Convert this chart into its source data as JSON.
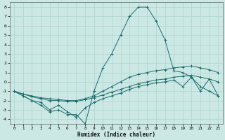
{
  "xlabel": "Humidex (Indice chaleur)",
  "xlim": [
    -0.5,
    23.5
  ],
  "ylim": [
    -4.5,
    8.5
  ],
  "yticks": [
    -4,
    -3,
    -2,
    -1,
    0,
    1,
    2,
    3,
    4,
    5,
    6,
    7,
    8
  ],
  "xticks": [
    0,
    1,
    2,
    3,
    4,
    5,
    6,
    7,
    8,
    9,
    10,
    11,
    12,
    13,
    14,
    15,
    16,
    17,
    18,
    19,
    20,
    21,
    22,
    23
  ],
  "bg_color": "#cce8e4",
  "grid_color": "#b0d8d4",
  "line_color": "#1a6b6b",
  "series": [
    {
      "x": [
        0,
        1,
        2,
        3,
        4,
        5,
        6,
        7,
        8,
        9,
        10,
        11,
        12,
        13,
        14,
        15,
        16,
        17,
        18,
        19,
        20,
        21,
        22,
        23
      ],
      "y": [
        -1.0,
        -1.5,
        -2.0,
        -2.5,
        -3.2,
        -3.0,
        -3.5,
        -3.5,
        -4.5,
        -1.0,
        1.5,
        3.0,
        5.0,
        7.0,
        8.0,
        8.0,
        6.5,
        4.5,
        1.2,
        1.0,
        0.5,
        -0.5,
        -1.0,
        -1.5
      ]
    },
    {
      "x": [
        0,
        1,
        2,
        3,
        4,
        5,
        6,
        7,
        8,
        9,
        10,
        11,
        12,
        13,
        14,
        15,
        16,
        17,
        18,
        19,
        20,
        21,
        22,
        23
      ],
      "y": [
        -1.0,
        -1.3,
        -1.5,
        -1.7,
        -1.8,
        -1.9,
        -2.0,
        -2.0,
        -1.8,
        -1.5,
        -1.0,
        -0.5,
        0.0,
        0.5,
        0.8,
        1.0,
        1.2,
        1.3,
        1.5,
        1.6,
        1.7,
        1.5,
        1.3,
        1.0
      ]
    },
    {
      "x": [
        0,
        1,
        2,
        3,
        4,
        5,
        6,
        7,
        8,
        9,
        10,
        11,
        12,
        13,
        14,
        15,
        16,
        17,
        18,
        19,
        20,
        21,
        22,
        23
      ],
      "y": [
        -1.0,
        -1.3,
        -1.6,
        -1.8,
        -2.0,
        -2.0,
        -2.1,
        -2.1,
        -1.9,
        -1.7,
        -1.4,
        -1.1,
        -0.8,
        -0.5,
        -0.2,
        0.0,
        0.2,
        0.3,
        0.5,
        0.6,
        0.7,
        0.5,
        0.3,
        0.0
      ]
    },
    {
      "x": [
        0,
        1,
        2,
        3,
        4,
        5,
        6,
        7,
        8,
        9,
        10,
        11,
        12,
        13,
        14,
        15,
        16,
        17,
        18,
        19,
        20,
        21,
        22,
        23
      ],
      "y": [
        -1.0,
        -1.5,
        -2.0,
        -2.2,
        -3.0,
        -2.5,
        -3.2,
        -3.8,
        -2.8,
        -2.2,
        -1.8,
        -1.5,
        -1.2,
        -0.8,
        -0.5,
        -0.3,
        -0.1,
        0.0,
        0.2,
        -0.5,
        0.5,
        -1.0,
        0.3,
        -1.5
      ]
    }
  ]
}
